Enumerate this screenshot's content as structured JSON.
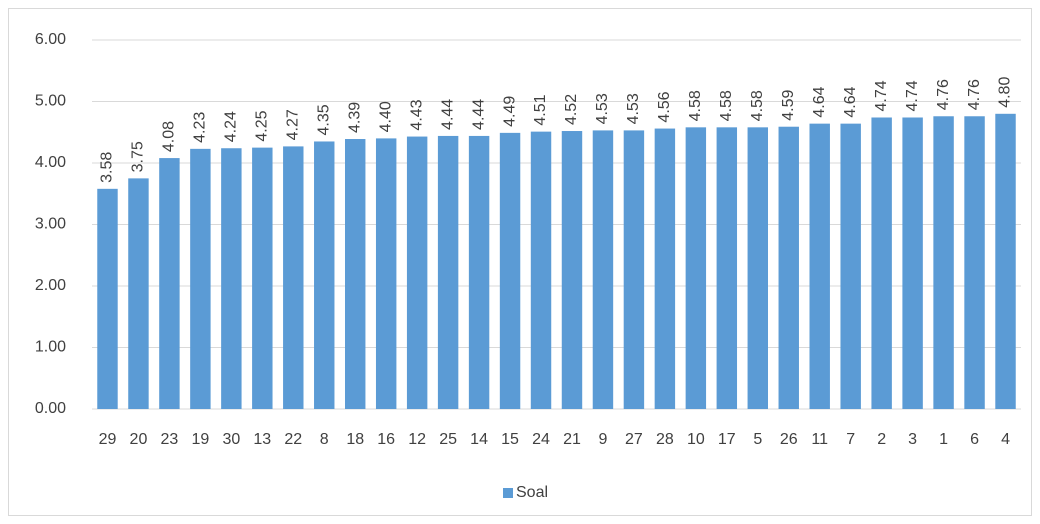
{
  "chart_data": {
    "type": "bar",
    "categories": [
      "29",
      "20",
      "23",
      "19",
      "30",
      "13",
      "22",
      "8",
      "18",
      "16",
      "12",
      "25",
      "14",
      "15",
      "24",
      "21",
      "9",
      "27",
      "28",
      "10",
      "17",
      "5",
      "26",
      "11",
      "7",
      "2",
      "3",
      "1",
      "6",
      "4"
    ],
    "series": [
      {
        "name": "Soal",
        "color": "#5b9bd5",
        "values": [
          3.58,
          3.75,
          4.08,
          4.23,
          4.24,
          4.25,
          4.27,
          4.35,
          4.39,
          4.4,
          4.43,
          4.44,
          4.44,
          4.49,
          4.51,
          4.52,
          4.53,
          4.53,
          4.56,
          4.58,
          4.58,
          4.58,
          4.59,
          4.64,
          4.64,
          4.74,
          4.74,
          4.76,
          4.76,
          4.8
        ],
        "value_labels": [
          "3.58",
          "3.75",
          "4.08",
          "4.23",
          "4.24",
          "4.25",
          "4.27",
          "4.35",
          "4.39",
          "4.40",
          "4.43",
          "4.44",
          "4.44",
          "4.49",
          "4.51",
          "4.52",
          "4.53",
          "4.53",
          "4.56",
          "4.58",
          "4.58",
          "4.58",
          "4.59",
          "4.64",
          "4.64",
          "4.74",
          "4.74",
          "4.76",
          "4.76",
          "4.80"
        ]
      }
    ],
    "ylim": [
      0,
      6
    ],
    "yticks": [
      {
        "value": 0,
        "label": "0.00"
      },
      {
        "value": 1,
        "label": "1.00"
      },
      {
        "value": 2,
        "label": "2.00"
      },
      {
        "value": 3,
        "label": "3.00"
      },
      {
        "value": 4,
        "label": "4.00"
      },
      {
        "value": 5,
        "label": "5.00"
      },
      {
        "value": 6,
        "label": "6.00"
      }
    ],
    "legend": "bottom"
  }
}
